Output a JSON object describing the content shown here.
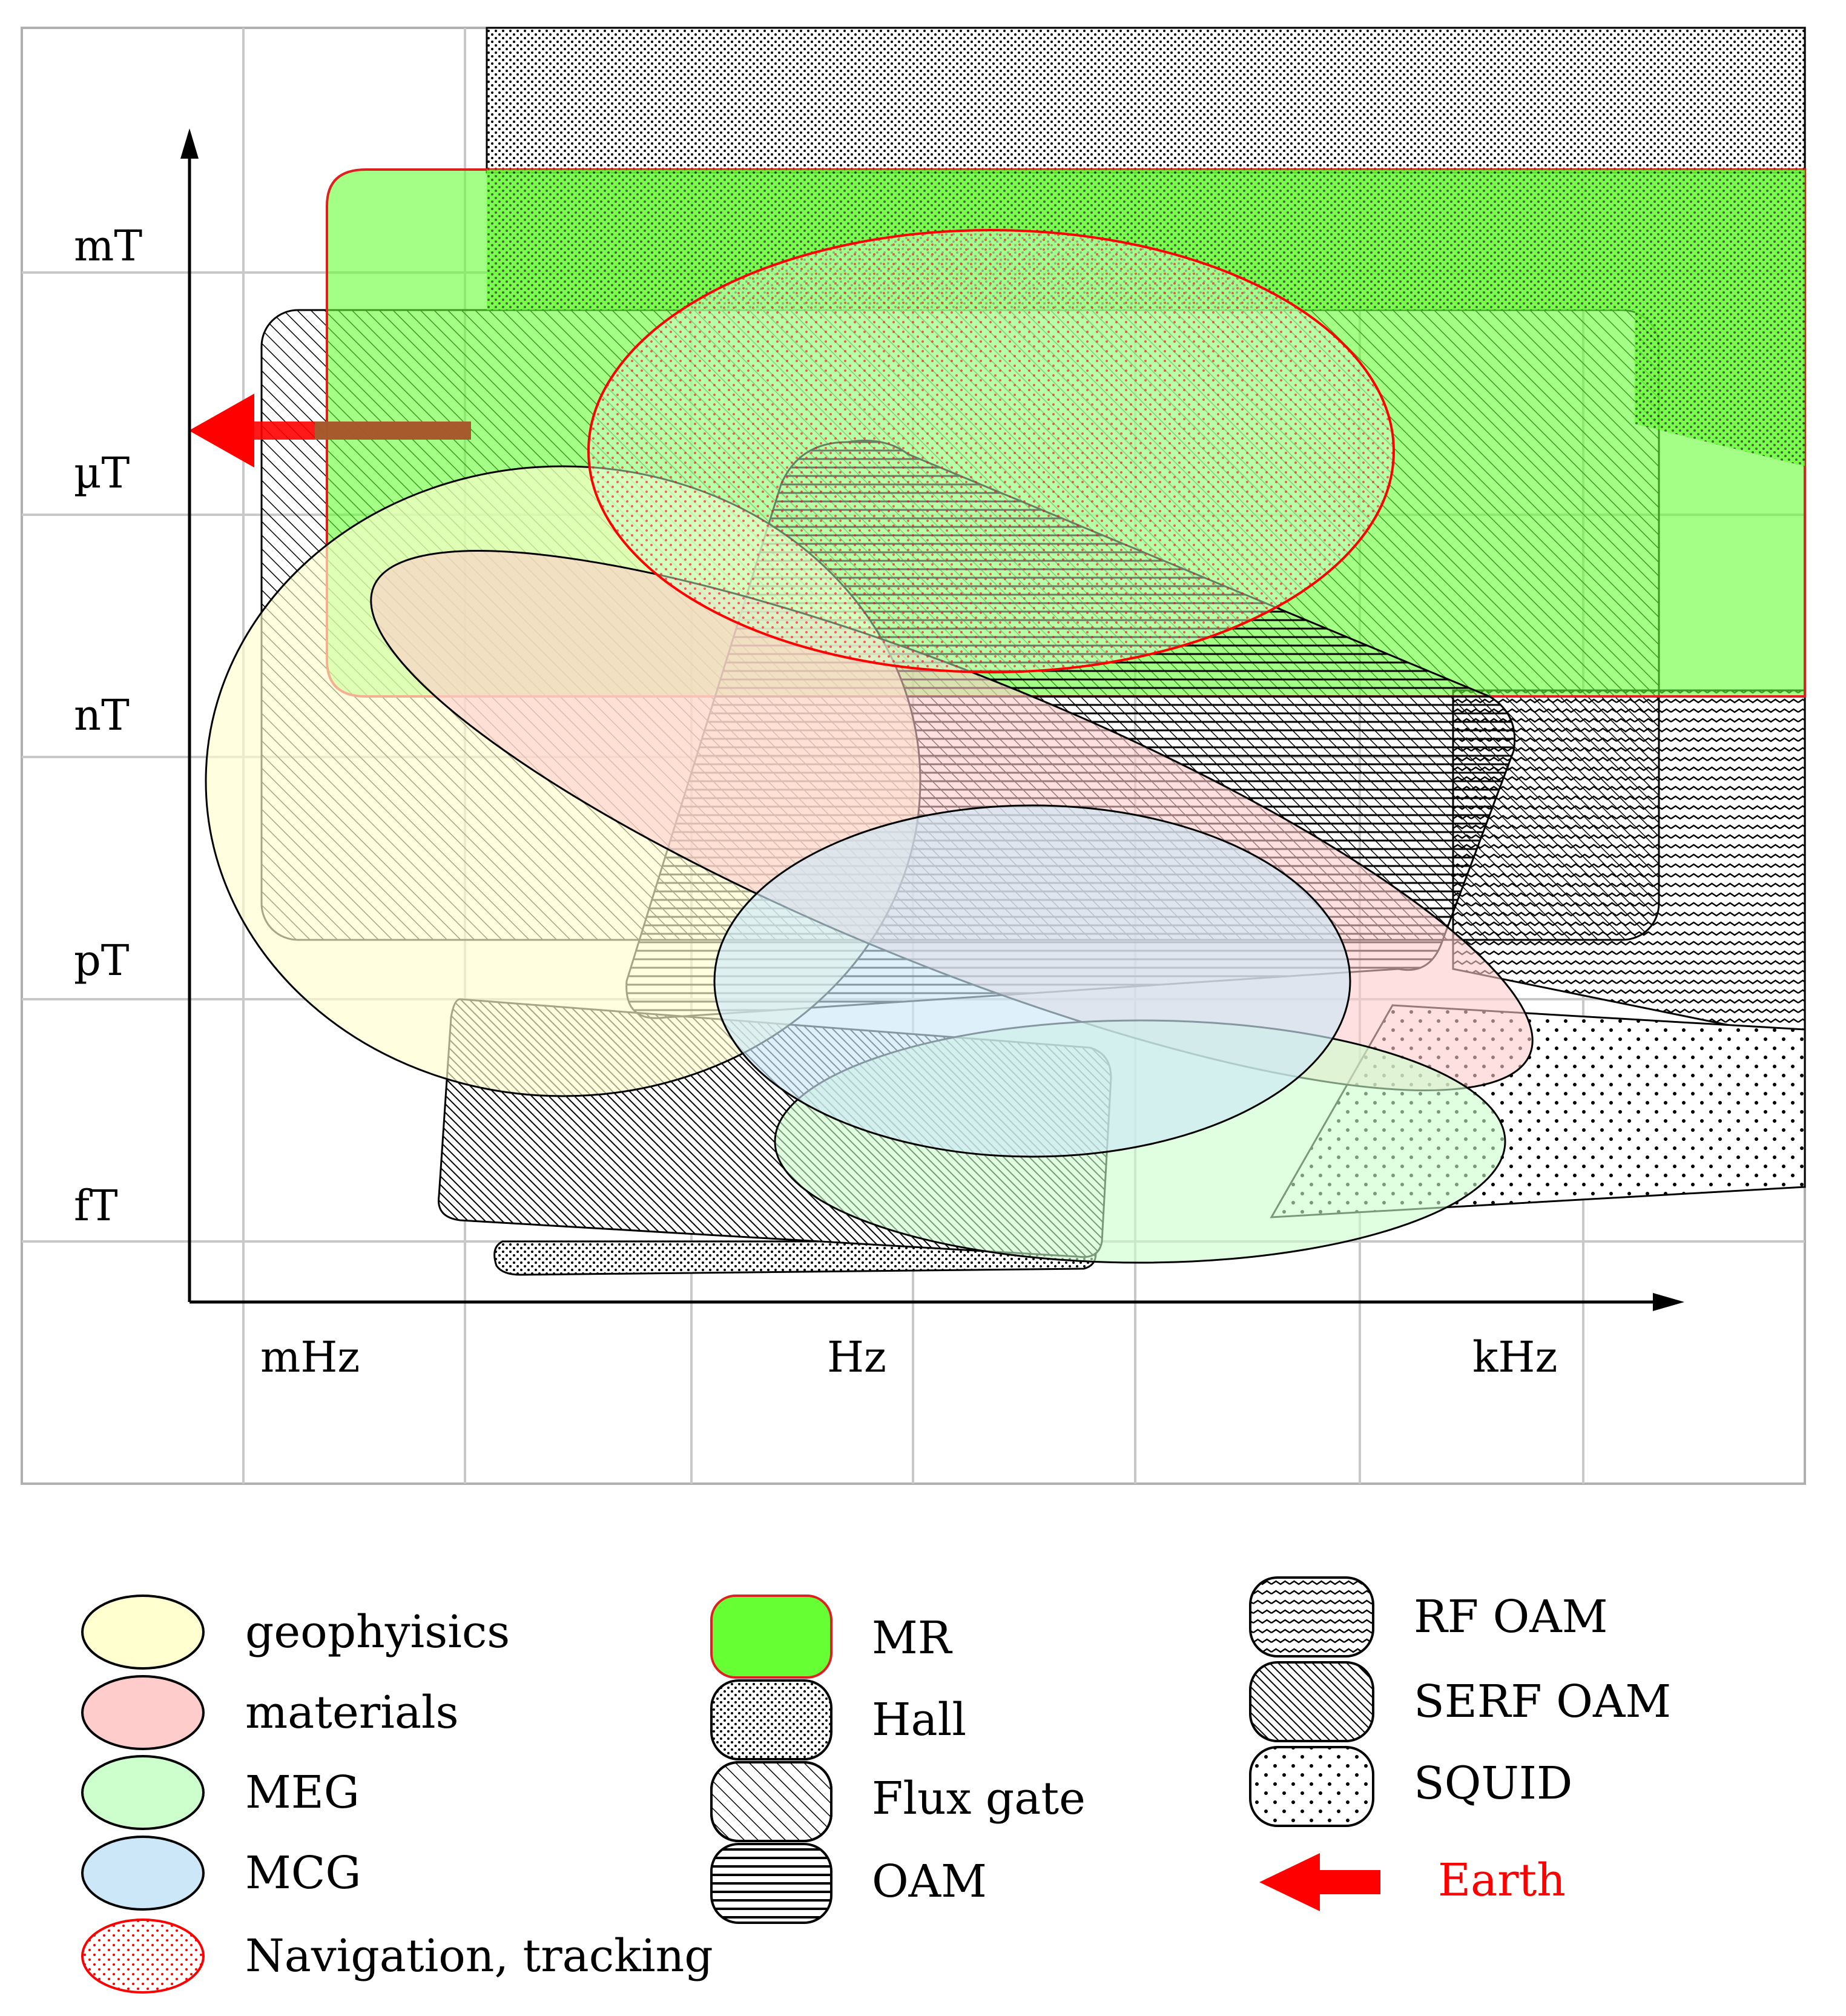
{
  "y_axis": {
    "labels": [
      "mT",
      "µT",
      "nT",
      "pT",
      "fT"
    ]
  },
  "x_axis": {
    "labels": [
      "mHz",
      "Hz",
      "kHz"
    ]
  },
  "legend": {
    "applications": [
      {
        "label": "geophyisics",
        "color": "#ffffd0"
      },
      {
        "label": "materials",
        "color": "#ffcccc"
      },
      {
        "label": "MEG",
        "color": "#ccffcc"
      },
      {
        "label": "MCG",
        "color": "#cce8f8"
      },
      {
        "label": "Navigation, tracking",
        "color": "#ff0000"
      }
    ],
    "sensors_a": [
      {
        "label": "MR",
        "pattern": "solid-green",
        "color": "#66ff33"
      },
      {
        "label": "Hall",
        "pattern": "fine-dots"
      },
      {
        "label": "Flux gate",
        "pattern": "diagonal-hatch"
      },
      {
        "label": "OAM",
        "pattern": "horizontal-lines"
      }
    ],
    "sensors_b": [
      {
        "label": "RF  OAM",
        "pattern": "wavy-lines"
      },
      {
        "label": "SERF  OAM",
        "pattern": "dense-diagonal"
      },
      {
        "label": "SQUID",
        "pattern": "sparse-dots"
      }
    ],
    "earth": {
      "label": "Earth",
      "color": "#ff0000"
    }
  }
}
